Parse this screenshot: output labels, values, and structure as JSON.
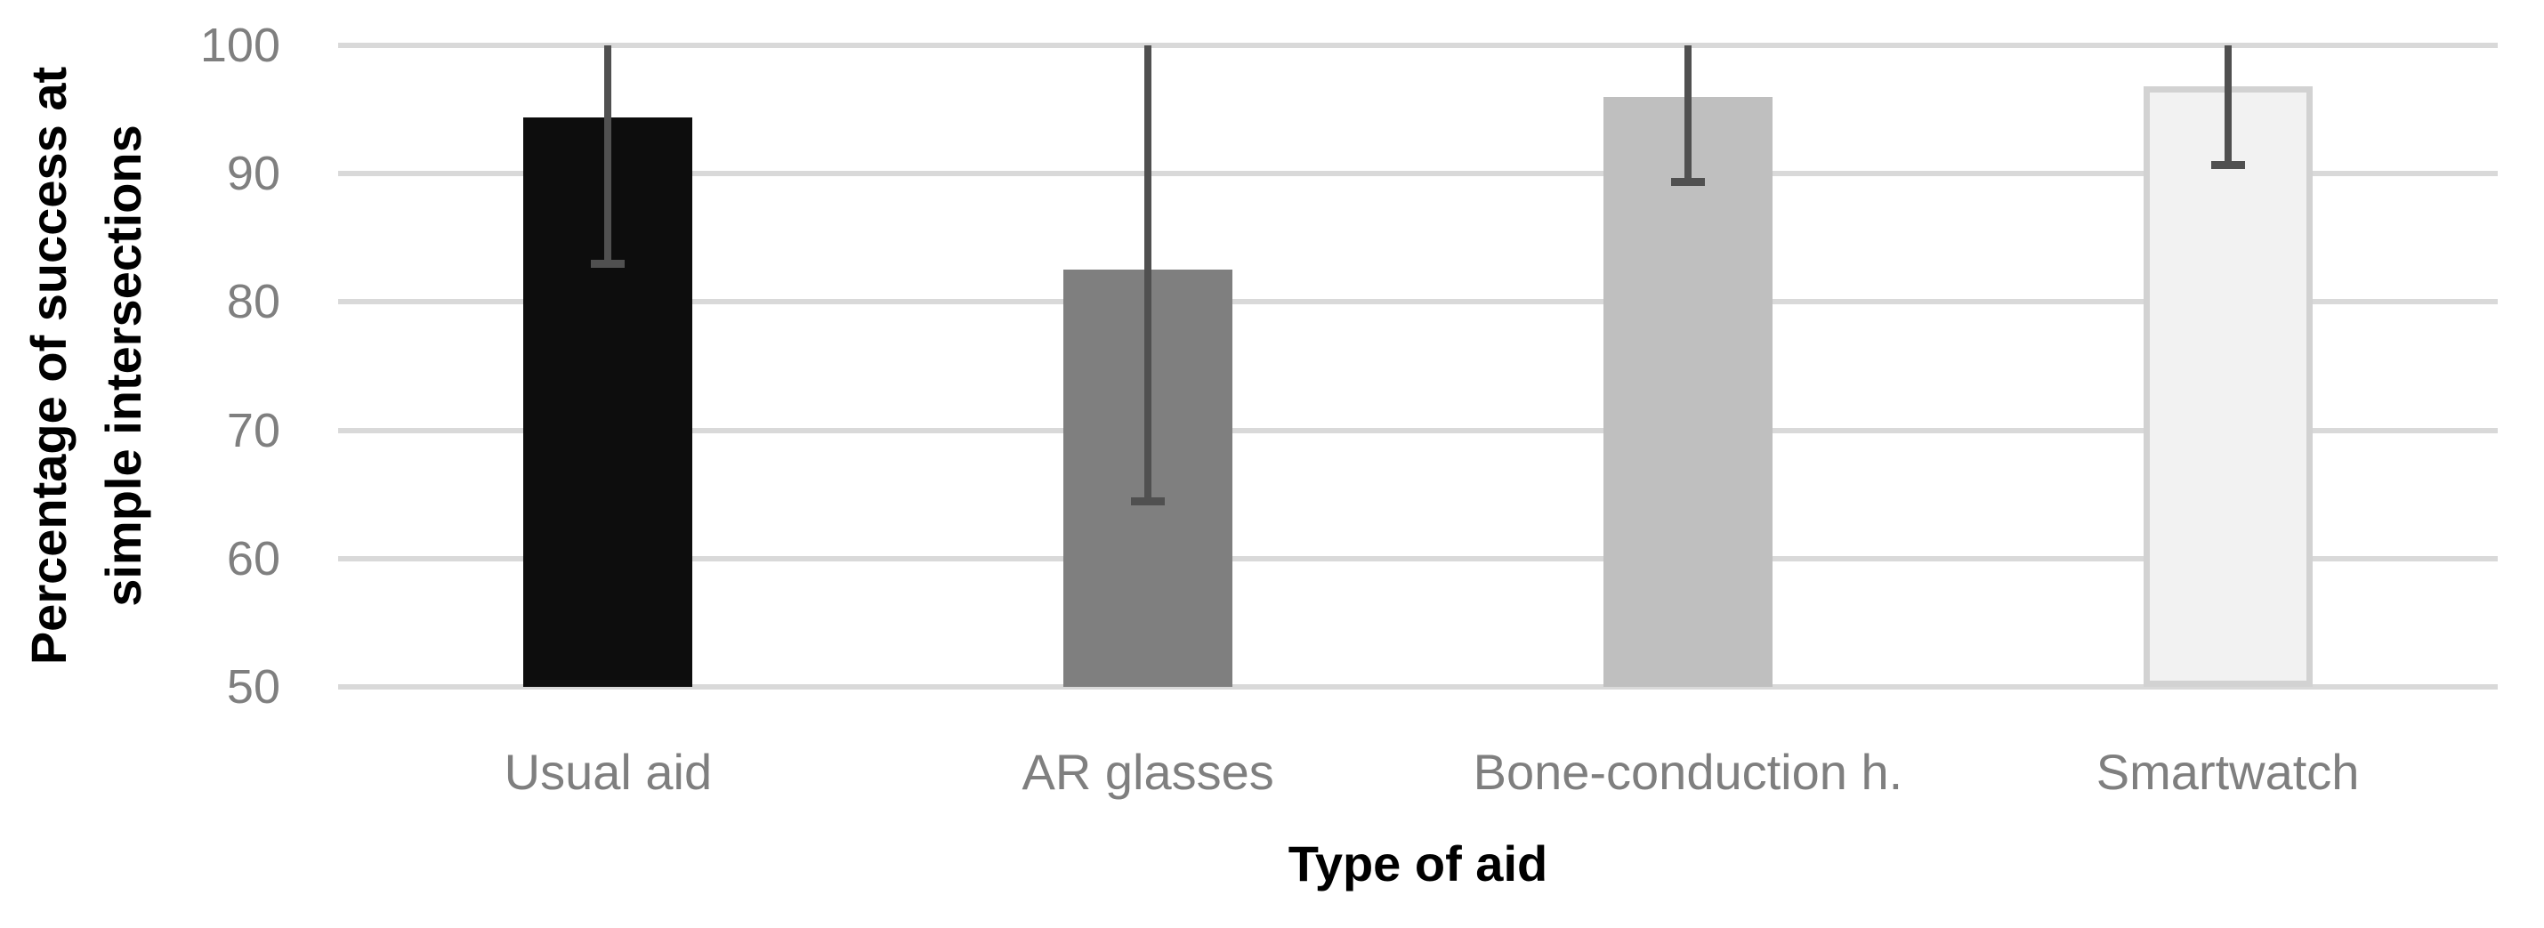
{
  "chart_data": {
    "type": "bar",
    "title": "",
    "categories": [
      "Usual aid",
      "AR glasses",
      "Bone-conduction h.",
      "Smartwatch"
    ],
    "values": [
      94.4,
      82.5,
      96.0,
      96.8
    ],
    "error_low": [
      83.0,
      64.5,
      89.4,
      90.7
    ],
    "error_high": [
      100,
      100,
      100,
      100
    ],
    "error_note": "upper whiskers clipped at y-axis maximum (100), no top caps visible",
    "xlabel": "Type of aid",
    "ylabel_lines": [
      "Percentage of success at",
      "simple intersections"
    ],
    "ylim": [
      50,
      100
    ],
    "yticks": [
      100,
      90,
      80,
      70,
      60,
      50
    ],
    "grid": "horizontal",
    "legend": "none",
    "bar_colors": [
      "#0d0d0d",
      "#7f7f7f",
      "#bfbfbf",
      "#f2f2f2"
    ],
    "bar_border_colors": [
      null,
      null,
      null,
      "#d2d2d2"
    ],
    "error_bar_color": "#505050",
    "gridline_color": "#d9d9d9",
    "tick_label_color": "#7f7f7f",
    "axis_title_color": "#000000"
  }
}
